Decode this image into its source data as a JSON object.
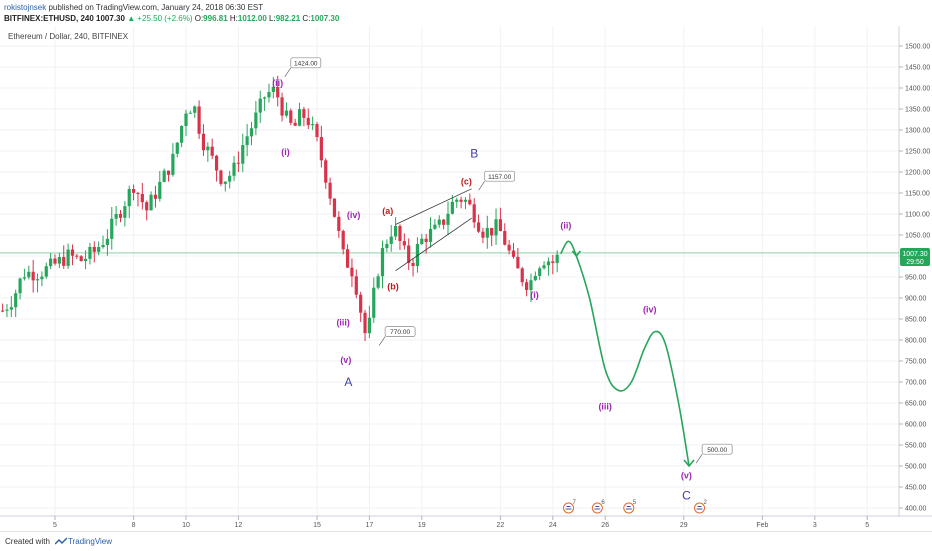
{
  "header": {
    "author": "rokistojnsek",
    "published": "published on TradingView.com, January 24, 2018 06:30 EST",
    "symbol": "BITFINEX:ETHUSD, 240",
    "last": "1007.30",
    "change": "▲ +25.50 (+2.6%)",
    "o_label": "O:",
    "o_value": "996.81",
    "h_label": "H:",
    "h_value": "1012.00",
    "l_label": "L:",
    "l_value": "982.21",
    "c_label": "C:",
    "c_value": "1007.30"
  },
  "pane_title": "Ethereum / Dollar, 240, BITFINEX",
  "price_tag": {
    "price": "1007.30",
    "countdown": "29:50"
  },
  "footer": {
    "created": "Created with",
    "brand": "TradingView"
  },
  "colors": {
    "up": "#26a65b",
    "down": "#d8334a",
    "projection": "#26a65b",
    "purple": "#9c27b0",
    "red_label": "#b71c1c",
    "blue_label": "#3f3fa6"
  },
  "chart_data": {
    "type": "candlestick",
    "title": "Ethereum / Dollar, 240, BITFINEX",
    "ylim": [
      380,
      1530
    ],
    "y_ticks": [
      400,
      450,
      500,
      550,
      600,
      650,
      700,
      750,
      800,
      850,
      900,
      950,
      1000,
      1050,
      1100,
      1150,
      1200,
      1250,
      1300,
      1350,
      1400,
      1450,
      1500
    ],
    "x_ticks": [
      {
        "label": "5",
        "day": 5
      },
      {
        "label": "8",
        "day": 8
      },
      {
        "label": "10",
        "day": 10
      },
      {
        "label": "12",
        "day": 12
      },
      {
        "label": "15",
        "day": 15
      },
      {
        "label": "17",
        "day": 17
      },
      {
        "label": "19",
        "day": 19
      },
      {
        "label": "22",
        "day": 22
      },
      {
        "label": "24",
        "day": 24
      },
      {
        "label": "26",
        "day": 26
      },
      {
        "label": "29",
        "day": 29
      },
      {
        "label": "Feb",
        "day": 32
      },
      {
        "label": "3",
        "day": 34
      },
      {
        "label": "5",
        "day": 36
      }
    ],
    "grid": true,
    "price_line": 1007.3,
    "candle_path": [
      [
        3.0,
        870
      ],
      [
        3.4,
        900
      ],
      [
        3.8,
        960
      ],
      [
        4.4,
        960
      ],
      [
        5.0,
        980
      ],
      [
        5.5,
        1000
      ],
      [
        6.0,
        990
      ],
      [
        6.5,
        1010
      ],
      [
        7.0,
        1050
      ],
      [
        7.5,
        1110
      ],
      [
        8.0,
        1170
      ],
      [
        8.5,
        1110
      ],
      [
        9.0,
        1170
      ],
      [
        9.5,
        1230
      ],
      [
        10.0,
        1350
      ],
      [
        10.3,
        1360
      ],
      [
        10.6,
        1280
      ],
      [
        11.0,
        1230
      ],
      [
        11.4,
        1180
      ],
      [
        11.8,
        1200
      ],
      [
        12.2,
        1270
      ],
      [
        12.6,
        1320
      ],
      [
        13.0,
        1380
      ],
      [
        13.3,
        1395
      ],
      [
        13.5,
        1380
      ],
      [
        13.8,
        1330
      ],
      [
        14.1,
        1300
      ],
      [
        14.4,
        1340
      ],
      [
        14.7,
        1320
      ],
      [
        15.0,
        1270
      ],
      [
        15.3,
        1200
      ],
      [
        15.6,
        1120
      ],
      [
        16.0,
        1000
      ],
      [
        16.4,
        960
      ],
      [
        16.7,
        860
      ],
      [
        16.9,
        795
      ],
      [
        17.1,
        880
      ],
      [
        17.3,
        960
      ],
      [
        17.5,
        1010
      ],
      [
        17.8,
        1060
      ],
      [
        18.0,
        1060
      ],
      [
        18.3,
        1010
      ],
      [
        18.6,
        980
      ],
      [
        18.9,
        1030
      ],
      [
        19.2,
        1050
      ],
      [
        19.5,
        1060
      ],
      [
        19.8,
        1080
      ],
      [
        20.1,
        1120
      ],
      [
        20.4,
        1140
      ],
      [
        20.7,
        1130
      ],
      [
        21.0,
        1100
      ],
      [
        21.3,
        1060
      ],
      [
        21.6,
        1060
      ],
      [
        21.9,
        1070
      ],
      [
        22.2,
        1030
      ],
      [
        22.5,
        980
      ],
      [
        22.8,
        950
      ],
      [
        23.1,
        930
      ],
      [
        23.4,
        980
      ],
      [
        23.7,
        995
      ],
      [
        24.0,
        985
      ],
      [
        24.3,
        1005
      ]
    ],
    "projection": [
      [
        24.3,
        1005
      ],
      [
        24.6,
        1035
      ],
      [
        24.9,
        1000
      ],
      [
        25.4,
        900
      ],
      [
        26.0,
        730
      ],
      [
        26.5,
        680
      ],
      [
        27.0,
        700
      ],
      [
        27.5,
        780
      ],
      [
        27.9,
        820
      ],
      [
        28.3,
        790
      ],
      [
        28.8,
        650
      ],
      [
        29.2,
        500
      ]
    ],
    "wedge": [
      [
        [
          18.0,
          1075
        ],
        [
          20.9,
          1160
        ]
      ],
      [
        [
          18.0,
          965
        ],
        [
          20.9,
          1090
        ]
      ]
    ],
    "wave_labels": [
      {
        "text": "(ii)",
        "day": 13.5,
        "price": 1405,
        "color": "purple"
      },
      {
        "text": "(i)",
        "day": 13.8,
        "price": 1240,
        "color": "purple"
      },
      {
        "text": "(iv)",
        "day": 16.4,
        "price": 1090,
        "color": "purple"
      },
      {
        "text": "(iii)",
        "day": 16.0,
        "price": 835,
        "color": "purple"
      },
      {
        "text": "(v)",
        "day": 16.1,
        "price": 745,
        "color": "purple"
      },
      {
        "text": "A",
        "day": 16.2,
        "price": 690,
        "color": "blue"
      },
      {
        "text": "(a)",
        "day": 17.7,
        "price": 1100,
        "color": "red"
      },
      {
        "text": "(b)",
        "day": 17.9,
        "price": 920,
        "color": "red"
      },
      {
        "text": "(c)",
        "day": 20.7,
        "price": 1170,
        "color": "red"
      },
      {
        "text": "B",
        "day": 21.0,
        "price": 1235,
        "color": "blue"
      },
      {
        "text": "(ii)",
        "day": 24.5,
        "price": 1065,
        "color": "purple"
      },
      {
        "text": "(i)",
        "day": 23.3,
        "price": 900,
        "color": "purple"
      },
      {
        "text": "(iii)",
        "day": 26.0,
        "price": 635,
        "color": "purple"
      },
      {
        "text": "(iv)",
        "day": 27.7,
        "price": 865,
        "color": "purple"
      },
      {
        "text": "(v)",
        "day": 29.1,
        "price": 470,
        "color": "purple"
      },
      {
        "text": "C",
        "day": 29.1,
        "price": 420,
        "color": "blue"
      }
    ],
    "price_callouts": [
      {
        "text": "1424.00",
        "day": 14.0,
        "price": 1460
      },
      {
        "text": "770.00",
        "day": 17.6,
        "price": 820
      },
      {
        "text": "1157.00",
        "day": 21.4,
        "price": 1190
      },
      {
        "text": "500.00",
        "day": 29.7,
        "price": 540
      }
    ],
    "events": [
      {
        "count": "7",
        "day": 24.6
      },
      {
        "count": "6",
        "day": 25.7
      },
      {
        "count": "5",
        "day": 26.9
      },
      {
        "count": "2",
        "day": 29.6
      }
    ]
  }
}
